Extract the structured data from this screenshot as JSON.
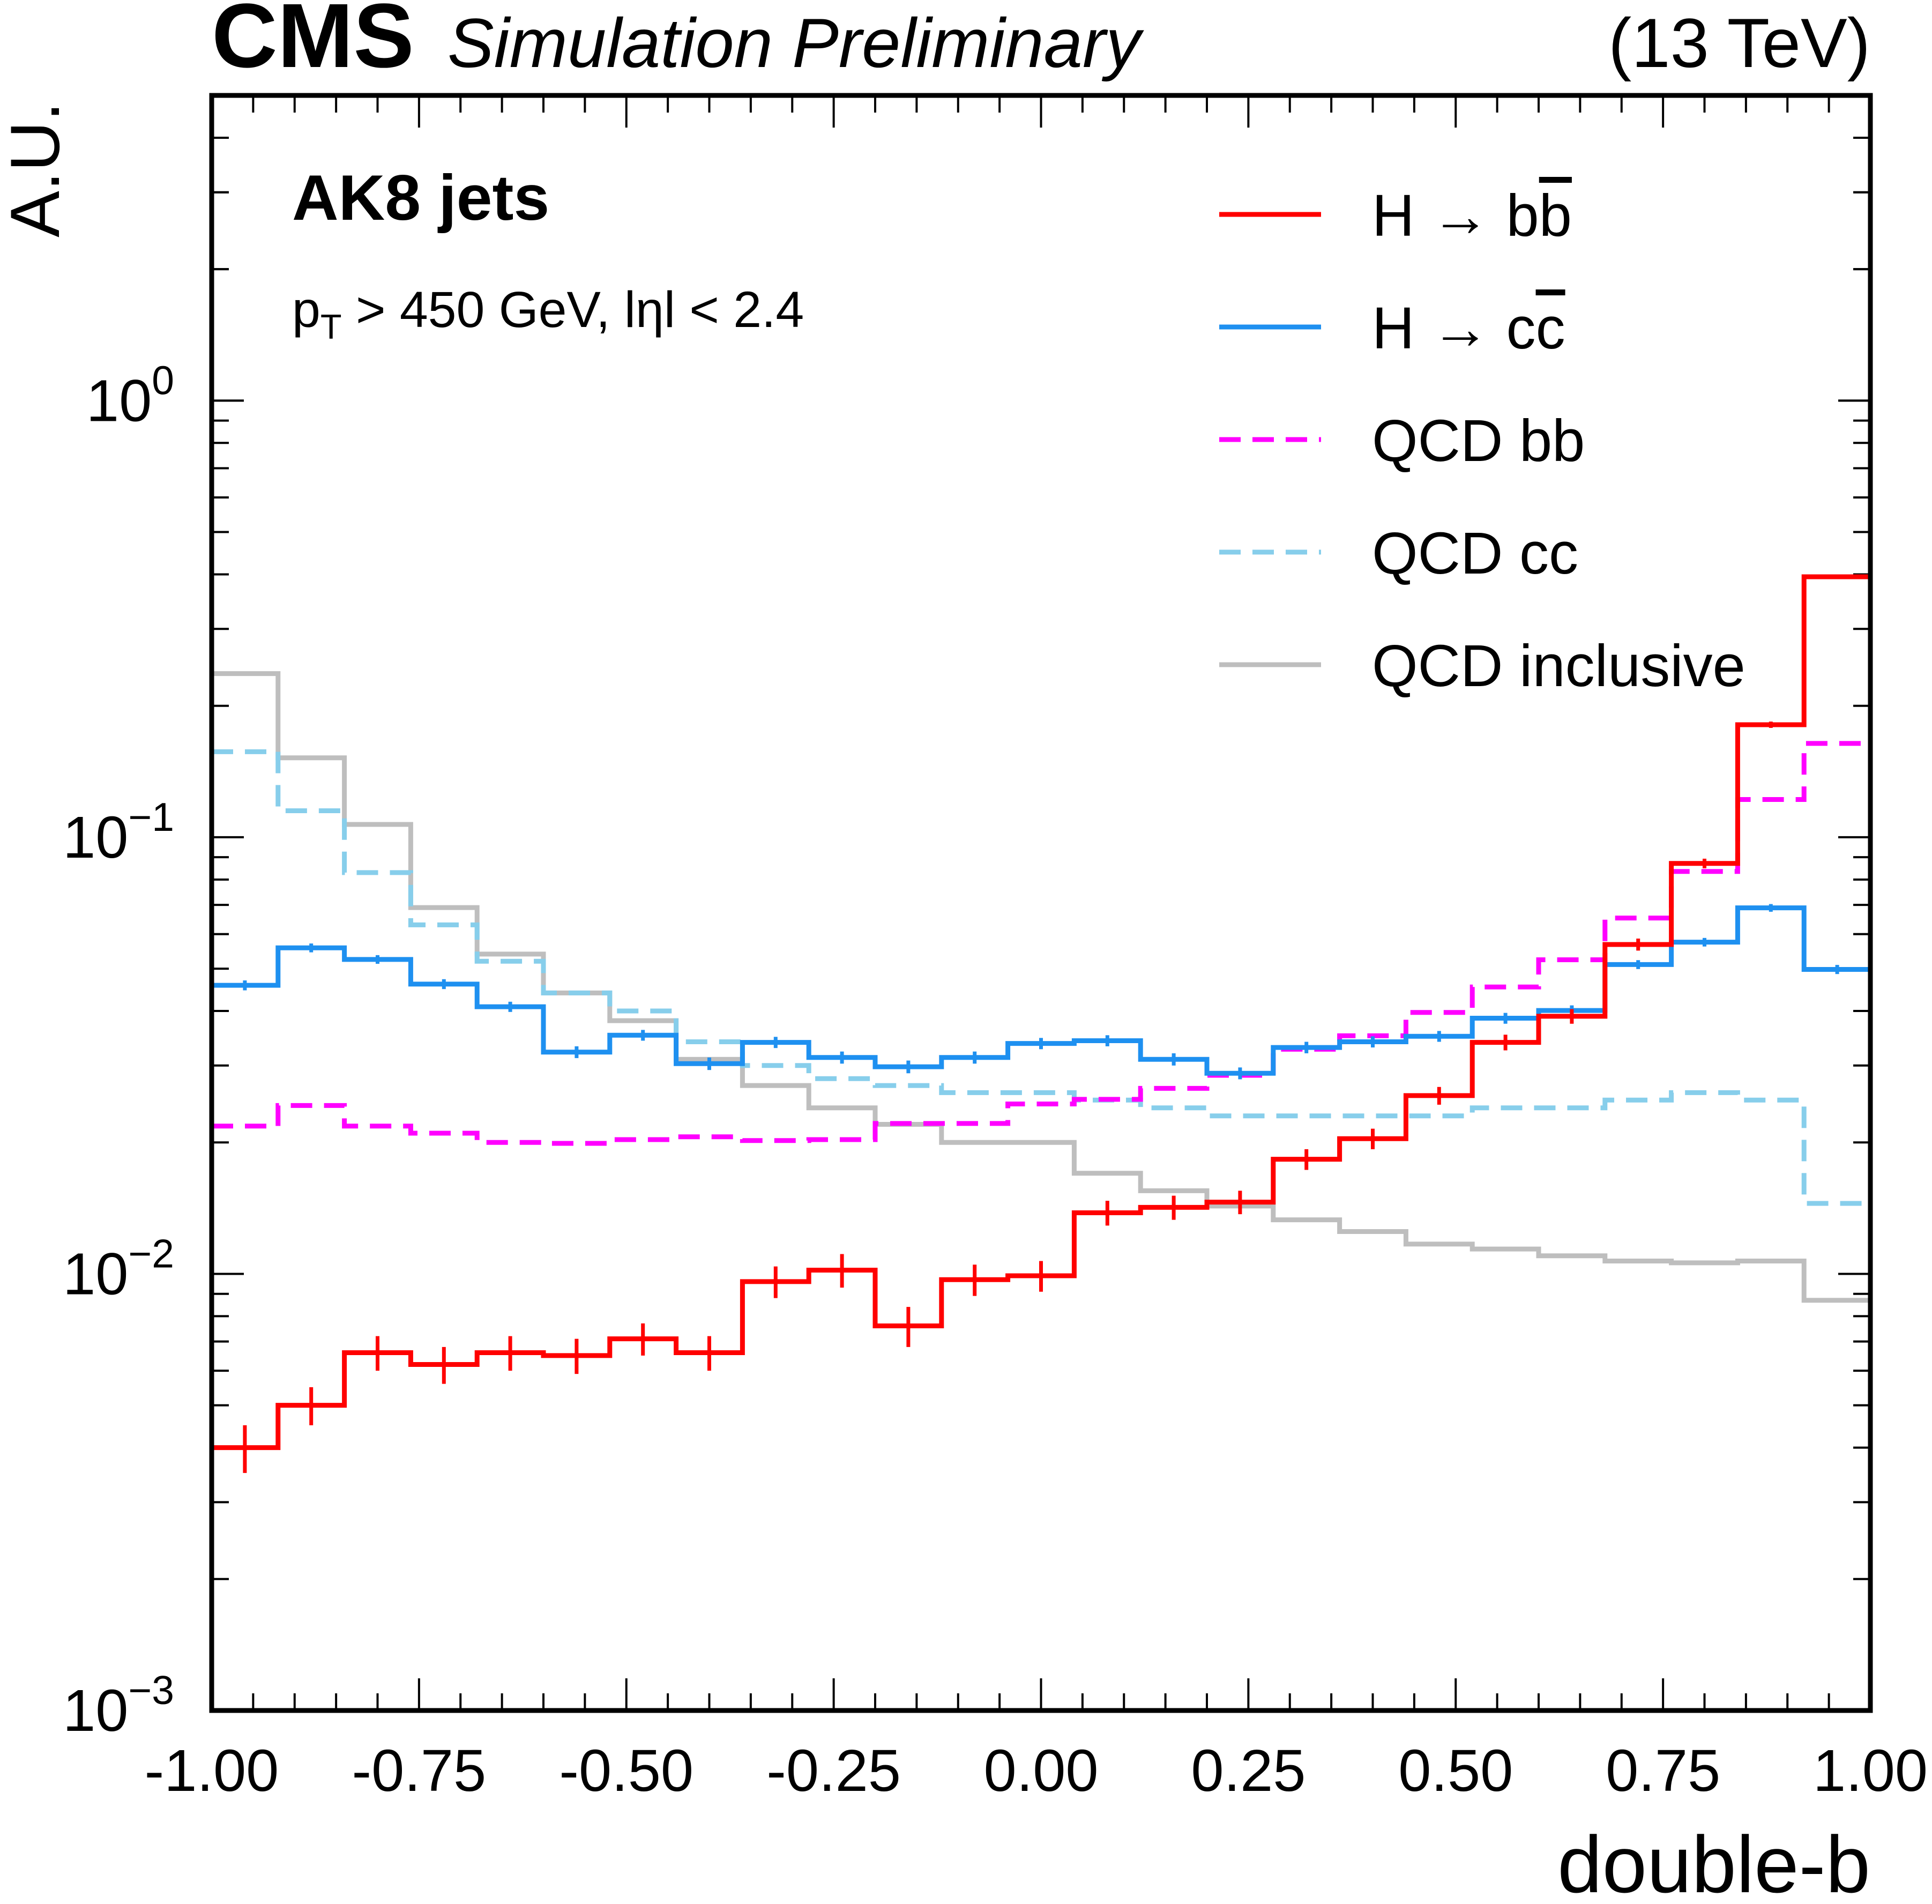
{
  "header": {
    "experiment": "CMS",
    "status": "Simulation Preliminary",
    "energy": "(13 TeV)"
  },
  "annotations": {
    "jets": "AK8 jets",
    "cuts": "pT > 450 GeV, |η| < 2.4",
    "cuts_parts": {
      "p": "p",
      "sub": "T",
      "rest": " > 450 GeV, lηl < 2.4"
    }
  },
  "chart_data": {
    "type": "line",
    "style": "step-histogram",
    "title": "",
    "xlabel": "double-b",
    "ylabel": "A.U.",
    "xlim": [
      -1.0,
      1.0
    ],
    "ylim": [
      0.001,
      5.0
    ],
    "yscale": "log",
    "x_ticks": [
      "-1.00",
      "-0.75",
      "-0.50",
      "-0.25",
      "0.00",
      "0.25",
      "0.50",
      "0.75",
      "1.00"
    ],
    "y_ticks": [
      {
        "value": 1.0,
        "base": "10",
        "exp": "0"
      },
      {
        "value": 0.1,
        "base": "10",
        "exp": "−1"
      },
      {
        "value": 0.01,
        "base": "10",
        "exp": "−2"
      },
      {
        "value": 0.001,
        "base": "10",
        "exp": "−3"
      }
    ],
    "legend_position": "top-right",
    "bin_edges": [
      -1.0,
      -0.92,
      -0.84,
      -0.76,
      -0.68,
      -0.6,
      -0.52,
      -0.44,
      -0.36,
      -0.28,
      -0.2,
      -0.12,
      -0.04,
      0.04,
      0.12,
      0.2,
      0.28,
      0.36,
      0.44,
      0.52,
      0.6,
      0.68,
      0.76,
      0.84,
      0.92,
      1.0
    ],
    "series": [
      {
        "name": "H → bb̄",
        "label_main": "H → b",
        "label_bar": "b",
        "color": "#ff0000",
        "dash": false,
        "errors": true,
        "values": [
          0.004,
          0.005,
          0.0066,
          0.0062,
          0.0066,
          0.0065,
          0.0071,
          0.0066,
          0.0096,
          0.0102,
          0.0076,
          0.0097,
          0.0099,
          0.0138,
          0.0142,
          0.0146,
          0.0183,
          0.0204,
          0.0256,
          0.0339,
          0.0389,
          0.0568,
          0.0871,
          0.181,
          0.395
        ],
        "err": [
          0.0005,
          0.0005,
          0.0006,
          0.0006,
          0.0006,
          0.0006,
          0.0006,
          0.0006,
          0.0008,
          0.0009,
          0.0008,
          0.0008,
          0.0008,
          0.0009,
          0.0009,
          0.0009,
          0.001,
          0.0011,
          0.0012,
          0.0014,
          0.0015,
          0.0018,
          0.0022,
          0.003,
          0.004
        ]
      },
      {
        "name": "H → cc̄",
        "label_main": "H → c",
        "label_bar": "c",
        "color": "#1e90f0",
        "dash": false,
        "errors": true,
        "values": [
          0.0458,
          0.0558,
          0.0525,
          0.0461,
          0.0409,
          0.0322,
          0.0352,
          0.0303,
          0.0339,
          0.0313,
          0.0298,
          0.0313,
          0.0337,
          0.0342,
          0.031,
          0.0288,
          0.033,
          0.034,
          0.035,
          0.0385,
          0.0401,
          0.0511,
          0.0575,
          0.0689,
          0.0498
        ],
        "err": [
          0.0012,
          0.0013,
          0.0012,
          0.0012,
          0.0011,
          0.001,
          0.001,
          0.001,
          0.001,
          0.001,
          0.001,
          0.001,
          0.001,
          0.001,
          0.001,
          0.0009,
          0.001,
          0.001,
          0.001,
          0.0011,
          0.0011,
          0.0012,
          0.0013,
          0.0014,
          0.0012
        ]
      },
      {
        "name": "QCD bb",
        "color": "#ff00ff",
        "dash": true,
        "errors": false,
        "values": [
          0.0218,
          0.0243,
          0.0218,
          0.021,
          0.02,
          0.0199,
          0.0203,
          0.0206,
          0.0202,
          0.0203,
          0.0221,
          0.0221,
          0.0245,
          0.0251,
          0.0266,
          0.0285,
          0.0327,
          0.0351,
          0.0397,
          0.0454,
          0.0524,
          0.0653,
          0.0835,
          0.122,
          0.164
        ],
        "err": []
      },
      {
        "name": "QCD cc",
        "color": "#87ceeb",
        "dash": true,
        "errors": false,
        "values": [
          0.157,
          0.115,
          0.083,
          0.063,
          0.052,
          0.044,
          0.04,
          0.034,
          0.03,
          0.028,
          0.027,
          0.026,
          0.026,
          0.025,
          0.024,
          0.023,
          0.023,
          0.023,
          0.023,
          0.024,
          0.024,
          0.025,
          0.026,
          0.025,
          0.0145
        ],
        "err": []
      },
      {
        "name": "QCD inclusive",
        "color": "#bebebe",
        "dash": false,
        "errors": false,
        "values": [
          0.237,
          0.152,
          0.107,
          0.069,
          0.054,
          0.044,
          0.038,
          0.031,
          0.027,
          0.024,
          0.022,
          0.02,
          0.02,
          0.017,
          0.0155,
          0.0143,
          0.0133,
          0.0125,
          0.0117,
          0.0114,
          0.011,
          0.0107,
          0.0106,
          0.0107,
          0.0087
        ],
        "err": []
      }
    ]
  }
}
